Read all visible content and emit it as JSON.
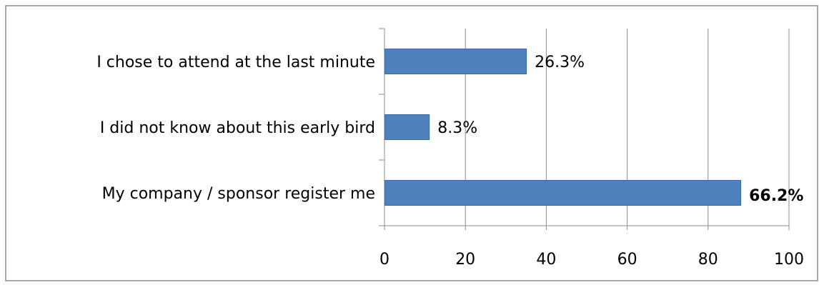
{
  "chart_data": {
    "type": "bar",
    "orientation": "horizontal",
    "categories": [
      "I chose to attend at the last minute",
      "I did not know about this early bird",
      "My company / sponsor register me"
    ],
    "values": [
      35,
      11,
      88
    ],
    "data_labels": [
      "26.3%",
      "8.3%",
      "66.2%"
    ],
    "bold_labels": [
      false,
      false,
      true
    ],
    "xlim": [
      0,
      100
    ],
    "xticks": [
      0,
      20,
      40,
      60,
      80,
      100
    ],
    "title": "",
    "xlabel": "",
    "ylabel": "",
    "grid": true,
    "legend": "none",
    "colors": {
      "bar": "#4f81bd",
      "bar_stroke": "#3a6aa3",
      "grid": "#8c8c8c",
      "axis": "#8c8c8c",
      "border": "#8c8c8c"
    }
  }
}
